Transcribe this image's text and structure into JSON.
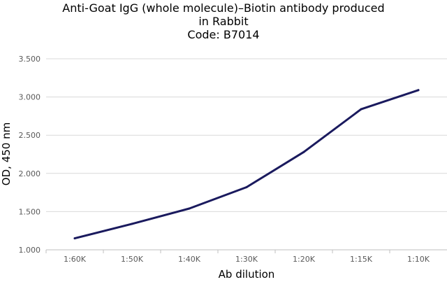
{
  "chart_data": {
    "type": "line",
    "title_lines": [
      "Anti-Goat IgG (whole molecule)–Biotin antibody produced",
      "in Rabbit",
      "Code: B7014"
    ],
    "xlabel": "Ab dilution",
    "ylabel": "OD, 450 nm",
    "categories": [
      "1:60K",
      "1:50K",
      "1:40K",
      "1:30K",
      "1:20K",
      "1:15K",
      "1:10K"
    ],
    "series": [
      {
        "values": [
          1.15,
          1.34,
          1.54,
          1.82,
          2.28,
          2.84,
          3.09
        ],
        "color": "#1a1a5e"
      }
    ],
    "ylim": [
      1.0,
      3.5
    ],
    "yticks": [
      1.0,
      1.5,
      2.0,
      2.5,
      3.0,
      3.5
    ],
    "ytick_labels": [
      "1.000",
      "1.500",
      "2.000",
      "2.500",
      "3.000",
      "3.500"
    ],
    "grid": "horizontal",
    "legend": "none"
  }
}
